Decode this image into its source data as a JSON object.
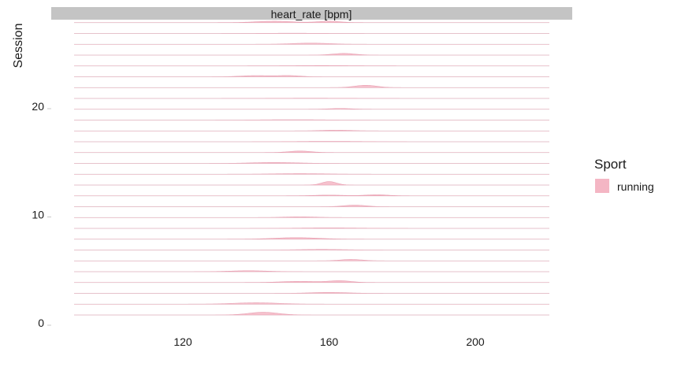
{
  "chart_data": {
    "type": "ridgeline",
    "facet_label": "heart_rate [bpm]",
    "ylabel": "Session",
    "xlabel": "",
    "x_ticks": [
      120,
      160,
      200
    ],
    "y_ticks": [
      0,
      10,
      20
    ],
    "xlim": [
      90,
      220
    ],
    "ylim": [
      0,
      27.9
    ],
    "grid": "horizontal baselines per session",
    "legend": {
      "title": "Sport",
      "position": "right",
      "entries": [
        {
          "label": "running",
          "color": "#f4b6c4"
        }
      ]
    },
    "fill_color": "#f4b6c4",
    "line_color": "#e8a0b2",
    "baseline_color": "#e5e5e5",
    "sessions": [
      {
        "session": 0,
        "peaks": [
          {
            "mean": 142,
            "sd": 4,
            "height": 0.35
          }
        ]
      },
      {
        "session": 1,
        "peaks": [
          {
            "mean": 140,
            "sd": 6,
            "height": 0.18
          }
        ]
      },
      {
        "session": 2,
        "peaks": [
          {
            "mean": 160,
            "sd": 5,
            "height": 0.12
          }
        ]
      },
      {
        "session": 3,
        "peaks": [
          {
            "mean": 152,
            "sd": 5,
            "height": 0.15
          },
          {
            "mean": 163,
            "sd": 3,
            "height": 0.22
          }
        ]
      },
      {
        "session": 4,
        "peaks": [
          {
            "mean": 138,
            "sd": 5,
            "height": 0.12
          }
        ]
      },
      {
        "session": 5,
        "peaks": [
          {
            "mean": 166,
            "sd": 3,
            "height": 0.18
          }
        ]
      },
      {
        "session": 6,
        "peaks": [
          {
            "mean": 158,
            "sd": 6,
            "height": 0.08
          }
        ]
      },
      {
        "session": 7,
        "peaks": [
          {
            "mean": 151,
            "sd": 6,
            "height": 0.2
          }
        ]
      },
      {
        "session": 8,
        "peaks": [
          {
            "mean": 160,
            "sd": 8,
            "height": 0.06
          }
        ]
      },
      {
        "session": 9,
        "peaks": [
          {
            "mean": 152,
            "sd": 4,
            "height": 0.1
          }
        ]
      },
      {
        "session": 10,
        "peaks": [
          {
            "mean": 167,
            "sd": 3,
            "height": 0.2
          }
        ]
      },
      {
        "session": 11,
        "peaks": [
          {
            "mean": 160,
            "sd": 4,
            "height": 0.1
          },
          {
            "mean": 173,
            "sd": 3,
            "height": 0.15
          }
        ]
      },
      {
        "session": 12,
        "peaks": [
          {
            "mean": 160,
            "sd": 2,
            "height": 0.45
          }
        ]
      },
      {
        "session": 13,
        "peaks": [
          {
            "mean": 152,
            "sd": 7,
            "height": 0.08
          }
        ]
      },
      {
        "session": 14,
        "peaks": [
          {
            "mean": 145,
            "sd": 6,
            "height": 0.12
          }
        ]
      },
      {
        "session": 15,
        "peaks": [
          {
            "mean": 152,
            "sd": 3,
            "height": 0.2
          }
        ]
      },
      {
        "session": 16,
        "peaks": [
          {
            "mean": 160,
            "sd": 8,
            "height": 0.05
          }
        ]
      },
      {
        "session": 17,
        "peaks": [
          {
            "mean": 162,
            "sd": 4,
            "height": 0.1
          }
        ]
      },
      {
        "session": 18,
        "peaks": [
          {
            "mean": 150,
            "sd": 8,
            "height": 0.05
          }
        ]
      },
      {
        "session": 19,
        "peaks": [
          {
            "mean": 163,
            "sd": 3,
            "height": 0.1
          }
        ]
      },
      {
        "session": 20,
        "peaks": [
          {
            "mean": 155,
            "sd": 10,
            "height": 0.03
          }
        ]
      },
      {
        "session": 21,
        "peaks": [
          {
            "mean": 170,
            "sd": 3,
            "height": 0.3
          }
        ]
      },
      {
        "session": 22,
        "peaks": [
          {
            "mean": 140,
            "sd": 4,
            "height": 0.15
          },
          {
            "mean": 149,
            "sd": 3,
            "height": 0.15
          }
        ]
      },
      {
        "session": 23,
        "peaks": [
          {
            "mean": 158,
            "sd": 8,
            "height": 0.04
          }
        ]
      },
      {
        "session": 24,
        "peaks": [
          {
            "mean": 164,
            "sd": 3,
            "height": 0.22
          }
        ]
      },
      {
        "session": 25,
        "peaks": [
          {
            "mean": 155,
            "sd": 5,
            "height": 0.15
          }
        ]
      },
      {
        "session": 26,
        "peaks": [
          {
            "mean": 150,
            "sd": 8,
            "height": 0.03
          }
        ]
      },
      {
        "session": 27,
        "peaks": [
          {
            "mean": 145,
            "sd": 5,
            "height": 0.18
          },
          {
            "mean": 160,
            "sd": 3,
            "height": 0.18
          }
        ]
      }
    ]
  }
}
